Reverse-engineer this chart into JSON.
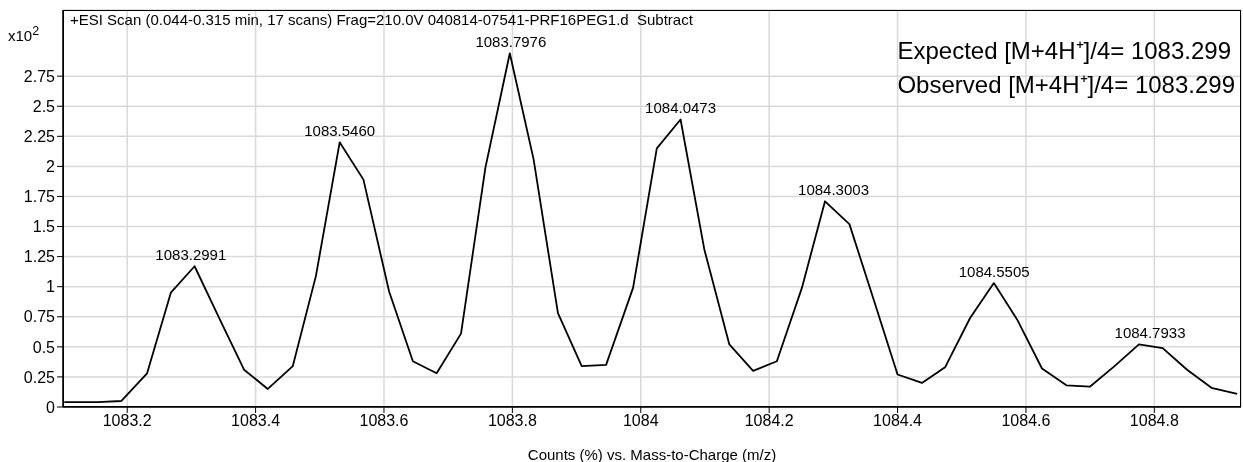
{
  "chart_data": {
    "type": "line",
    "title": "+ESI Scan (0.044-0.315 min, 17 scans) Frag=210.0V 040814-07541-PRF16PEG1.d  Subtract",
    "xlabel": "Counts (%) vs. Mass-to-Charge (m/z)",
    "ylabel": "x10$^{2}$",
    "x": [
      1083.102,
      1083.154,
      1083.191,
      1083.231,
      1083.268,
      1083.305,
      1083.345,
      1083.382,
      1083.419,
      1083.458,
      1083.494,
      1083.531,
      1083.568,
      1083.608,
      1083.645,
      1083.682,
      1083.72,
      1083.758,
      1083.796,
      1083.833,
      1083.871,
      1083.908,
      1083.946,
      1083.988,
      1084.025,
      1084.062,
      1084.099,
      1084.138,
      1084.175,
      1084.212,
      1084.251,
      1084.287,
      1084.325,
      1084.363,
      1084.4,
      1084.438,
      1084.474,
      1084.513,
      1084.55,
      1084.587,
      1084.625,
      1084.663,
      1084.7,
      1084.738,
      1084.776,
      1084.813,
      1084.851,
      1084.889,
      1084.929
    ],
    "series": [
      {
        "color": "#000000",
        "values": [
          0.04,
          0.04,
          0.05,
          0.28,
          0.95,
          1.17,
          0.72,
          0.31,
          0.15,
          0.34,
          1.09,
          2.2,
          1.89,
          0.96,
          0.38,
          0.28,
          0.61,
          1.99,
          2.94,
          2.06,
          0.78,
          0.34,
          0.35,
          0.99,
          2.15,
          2.39,
          1.31,
          0.52,
          0.3,
          0.38,
          0.99,
          1.71,
          1.52,
          0.89,
          0.27,
          0.2,
          0.33,
          0.74,
          1.03,
          0.72,
          0.32,
          0.18,
          0.17,
          0.34,
          0.52,
          0.49,
          0.31,
          0.16,
          0.11
        ]
      }
    ],
    "xlim": [
      1083.1,
      1084.935
    ],
    "xticks": [
      1083.2,
      1083.4,
      1083.6,
      1083.8,
      1084,
      1084.2,
      1084.4,
      1084.6,
      1084.8
    ],
    "ylim": [
      0,
      3.3
    ],
    "yticks": [
      0,
      0.25,
      0.5,
      0.75,
      1,
      1.25,
      1.5,
      1.75,
      2,
      2.25,
      2.5,
      2.75
    ],
    "grid": true,
    "legend": false,
    "marker": "none",
    "line_style": "solid",
    "annotations": [
      "Expected [M+4H⁺]/4= 1083.299",
      "Observed [M+4H⁺]/4= 1083.299",
      {
        "text": "1083.2991",
        "x": 1083.2991,
        "y": 1.17
      },
      {
        "text": "1083.5460",
        "x": 1083.531,
        "y": 2.2
      },
      {
        "text": "1083.7976",
        "x": 1083.7976,
        "y": 2.94
      },
      {
        "text": "1084.0473",
        "x": 1084.062,
        "y": 2.39
      },
      {
        "text": "1084.3003",
        "x": 1084.3003,
        "y": 1.71
      },
      {
        "text": "1084.5505",
        "x": 1084.5505,
        "y": 1.03
      },
      {
        "text": "1084.7933",
        "x": 1084.7933,
        "y": 0.52
      }
    ]
  }
}
